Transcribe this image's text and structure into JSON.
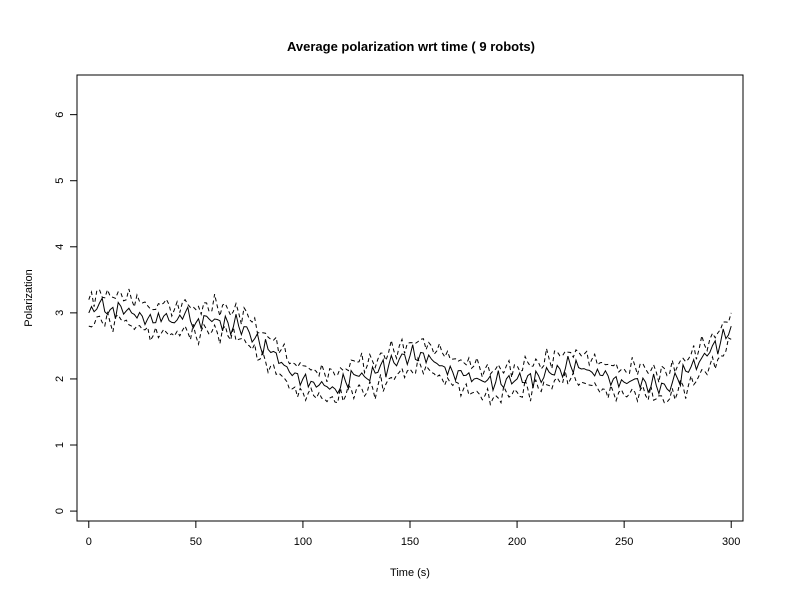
{
  "chart_data": {
    "type": "line",
    "title": "Average polarization wrt time ( 9 robots)",
    "xlabel": "Time (s)",
    "ylabel": "Polarization",
    "xlim": [
      -5.5,
      305.5
    ],
    "ylim": [
      -0.15,
      6.6
    ],
    "xticks": [
      0,
      50,
      100,
      150,
      200,
      250,
      300
    ],
    "yticks": [
      0,
      1,
      2,
      3,
      4,
      5,
      6
    ],
    "grid": false,
    "band_halfwidth": 0.2,
    "x": [
      0,
      5,
      10,
      15,
      20,
      25,
      30,
      35,
      40,
      45,
      50,
      55,
      60,
      65,
      70,
      75,
      80,
      85,
      90,
      95,
      100,
      105,
      110,
      115,
      120,
      125,
      130,
      135,
      140,
      145,
      150,
      155,
      160,
      165,
      170,
      175,
      180,
      185,
      190,
      195,
      200,
      205,
      210,
      215,
      220,
      225,
      230,
      235,
      240,
      245,
      250,
      255,
      260,
      265,
      270,
      275,
      280,
      285,
      290,
      295,
      300
    ],
    "series": [
      {
        "name": "mean",
        "style": "solid",
        "values": [
          3.0,
          3.15,
          3.05,
          3.1,
          3.0,
          2.95,
          2.85,
          2.95,
          2.85,
          3.0,
          2.85,
          2.95,
          2.9,
          2.85,
          2.8,
          2.7,
          2.5,
          2.4,
          2.25,
          2.05,
          2.0,
          1.95,
          1.9,
          1.85,
          1.95,
          2.05,
          2.0,
          2.1,
          2.2,
          2.3,
          2.35,
          2.4,
          2.3,
          2.2,
          2.1,
          2.05,
          2.0,
          1.95,
          1.95,
          2.0,
          2.0,
          2.05,
          2.05,
          2.1,
          2.15,
          2.2,
          2.15,
          2.1,
          2.05,
          2.0,
          1.95,
          2.0,
          1.95,
          1.9,
          1.85,
          2.0,
          2.1,
          2.25,
          2.4,
          2.55,
          2.8
        ]
      },
      {
        "name": "upper",
        "style": "dashed",
        "values": [
          3.2,
          3.35,
          3.25,
          3.3,
          3.2,
          3.15,
          3.05,
          3.15,
          3.05,
          3.2,
          3.05,
          3.15,
          3.1,
          3.05,
          3.0,
          2.9,
          2.7,
          2.6,
          2.45,
          2.25,
          2.2,
          2.15,
          2.1,
          2.05,
          2.15,
          2.25,
          2.2,
          2.3,
          2.4,
          2.5,
          2.55,
          2.6,
          2.5,
          2.4,
          2.3,
          2.25,
          2.2,
          2.15,
          2.15,
          2.2,
          2.2,
          2.25,
          2.25,
          2.3,
          2.35,
          2.4,
          2.35,
          2.3,
          2.25,
          2.2,
          2.15,
          2.2,
          2.15,
          2.1,
          2.05,
          2.2,
          2.3,
          2.45,
          2.6,
          2.75,
          3.0
        ]
      },
      {
        "name": "lower",
        "style": "dashed",
        "values": [
          2.8,
          2.95,
          2.85,
          2.9,
          2.8,
          2.75,
          2.65,
          2.75,
          2.65,
          2.8,
          2.65,
          2.75,
          2.7,
          2.65,
          2.6,
          2.5,
          2.3,
          2.2,
          2.05,
          1.85,
          1.8,
          1.75,
          1.7,
          1.65,
          1.75,
          1.85,
          1.8,
          1.9,
          2.0,
          2.1,
          2.15,
          2.2,
          2.1,
          2.0,
          1.9,
          1.85,
          1.8,
          1.75,
          1.75,
          1.8,
          1.8,
          1.85,
          1.85,
          1.9,
          1.95,
          2.0,
          1.95,
          1.9,
          1.85,
          1.8,
          1.75,
          1.8,
          1.75,
          1.7,
          1.65,
          1.8,
          1.9,
          2.05,
          2.2,
          2.35,
          2.6
        ]
      }
    ]
  }
}
